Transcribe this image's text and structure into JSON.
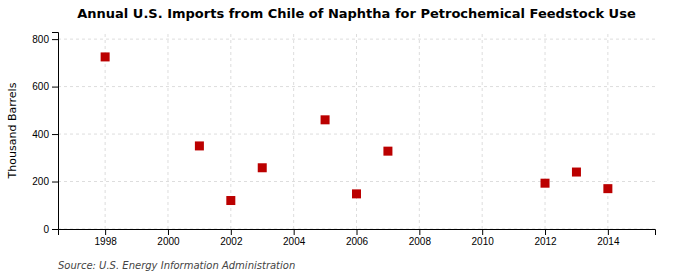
{
  "chart_data": {
    "type": "scatter",
    "title": "Annual U.S. Imports from Chile of Naphtha for Petrochemical Feedstock Use",
    "ylabel": "Thousand Barrels",
    "annotations": [
      "Source: U.S. Energy Information Administration"
    ],
    "x": [
      1998,
      2001,
      2002,
      2003,
      2005,
      2006,
      2007,
      2012,
      2013,
      2014
    ],
    "values": [
      725,
      350,
      120,
      258,
      460,
      148,
      328,
      193,
      240,
      170
    ],
    "color": "#bb0000",
    "marker": "square",
    "xlim": [
      1996.5,
      2015.5
    ],
    "ylim": [
      0,
      830
    ],
    "xticks": [
      1998,
      2000,
      2002,
      2004,
      2006,
      2008,
      2010,
      2012,
      2014
    ],
    "yticks": [
      0,
      200,
      400,
      600,
      800
    ],
    "grid": true
  }
}
